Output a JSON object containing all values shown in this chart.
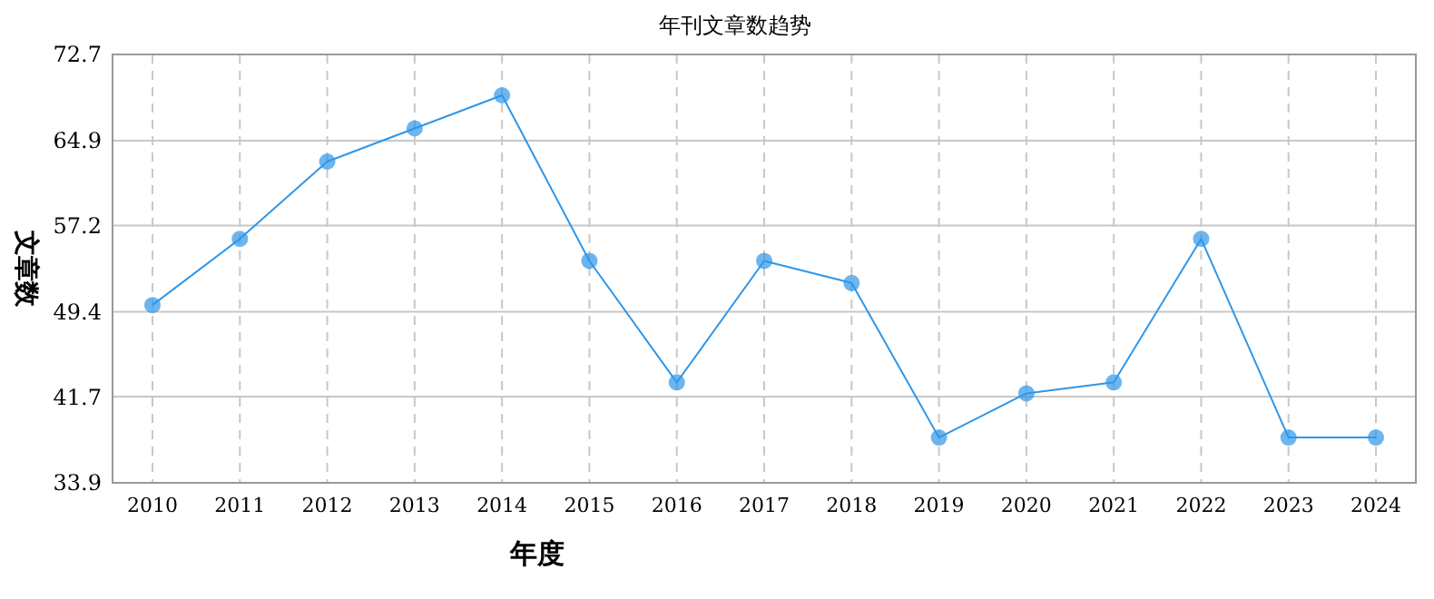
{
  "chart_data": {
    "type": "line",
    "title": "年刊文章数趋势",
    "xlabel": "年度",
    "ylabel": "文章数",
    "categories": [
      "2010",
      "2011",
      "2012",
      "2013",
      "2014",
      "2015",
      "2016",
      "2017",
      "2018",
      "2019",
      "2020",
      "2021",
      "2022",
      "2023",
      "2024"
    ],
    "series": [
      {
        "color": "#2f96e8",
        "values": [
          50,
          56,
          63,
          66,
          69,
          54,
          43,
          54,
          52,
          38,
          42,
          43,
          56,
          38,
          38
        ]
      }
    ],
    "ylim": [
      33.9,
      72.7
    ],
    "yticks": [
      33.9,
      41.7,
      49.4,
      57.2,
      64.9,
      72.7
    ],
    "grid": true,
    "marker": "circle",
    "line_style": "solid"
  }
}
